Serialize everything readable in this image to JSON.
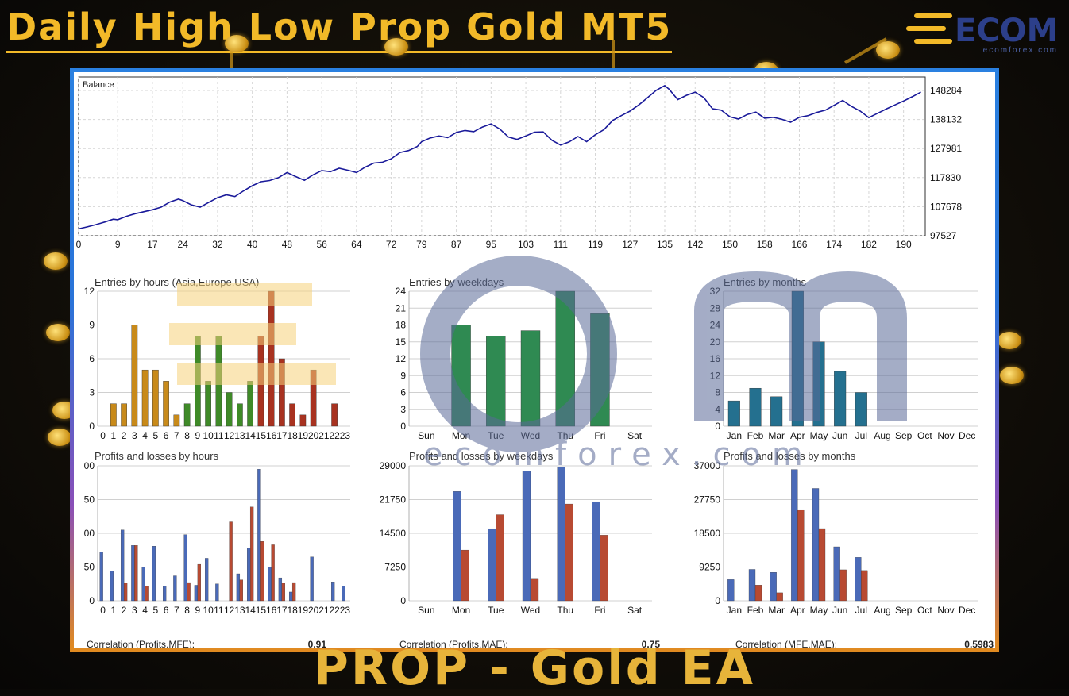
{
  "header": {
    "title": "Daily High Low Prop Gold MT5"
  },
  "brand": {
    "logo_text": "ECOM",
    "site": "ecomforex.com"
  },
  "footer": {
    "caption": "PROP - Gold EA"
  },
  "watermark": {
    "text": "ecomforex.com"
  },
  "colors": {
    "balance_line": "#1a1a9a",
    "grid": "#d0d0d0",
    "gold": "#f2b928"
  },
  "chart_data": [
    {
      "type": "line",
      "title": "Balance",
      "x_ticks": [
        "0",
        "9",
        "17",
        "24",
        "32",
        "40",
        "48",
        "56",
        "64",
        "72",
        "79",
        "87",
        "95",
        "103",
        "111",
        "119",
        "127",
        "135",
        "142",
        "150",
        "158",
        "166",
        "174",
        "182",
        "190"
      ],
      "y_ticks": [
        "148284",
        "138132",
        "127981",
        "117830",
        "107678",
        "97527"
      ],
      "xlim": [
        0,
        195
      ],
      "ylim": [
        97527,
        153000
      ],
      "points": [
        [
          0,
          99900
        ],
        [
          2,
          100600
        ],
        [
          4,
          101400
        ],
        [
          6,
          102300
        ],
        [
          8,
          103300
        ],
        [
          9,
          103100
        ],
        [
          11,
          104300
        ],
        [
          13,
          105200
        ],
        [
          15,
          105900
        ],
        [
          17,
          106600
        ],
        [
          19,
          107500
        ],
        [
          21,
          109300
        ],
        [
          23,
          110300
        ],
        [
          24,
          109800
        ],
        [
          26,
          108300
        ],
        [
          28,
          107500
        ],
        [
          30,
          109200
        ],
        [
          32,
          110800
        ],
        [
          34,
          111800
        ],
        [
          36,
          111200
        ],
        [
          38,
          113200
        ],
        [
          40,
          115000
        ],
        [
          42,
          116400
        ],
        [
          44,
          116800
        ],
        [
          46,
          117800
        ],
        [
          48,
          119600
        ],
        [
          50,
          118200
        ],
        [
          52,
          116900
        ],
        [
          54,
          118800
        ],
        [
          56,
          120300
        ],
        [
          58,
          119900
        ],
        [
          60,
          121100
        ],
        [
          62,
          120400
        ],
        [
          64,
          119600
        ],
        [
          66,
          121500
        ],
        [
          68,
          122900
        ],
        [
          70,
          123200
        ],
        [
          72,
          124400
        ],
        [
          74,
          126600
        ],
        [
          76,
          127300
        ],
        [
          78,
          128700
        ],
        [
          79,
          130400
        ],
        [
          81,
          131700
        ],
        [
          83,
          132400
        ],
        [
          85,
          131800
        ],
        [
          87,
          133600
        ],
        [
          89,
          134300
        ],
        [
          91,
          133900
        ],
        [
          93,
          135500
        ],
        [
          95,
          136600
        ],
        [
          97,
          134800
        ],
        [
          99,
          132000
        ],
        [
          101,
          131200
        ],
        [
          103,
          132400
        ],
        [
          105,
          133700
        ],
        [
          107,
          133800
        ],
        [
          109,
          130900
        ],
        [
          111,
          129200
        ],
        [
          113,
          130300
        ],
        [
          115,
          132200
        ],
        [
          117,
          130400
        ],
        [
          119,
          132800
        ],
        [
          121,
          134600
        ],
        [
          123,
          137800
        ],
        [
          125,
          139500
        ],
        [
          127,
          141100
        ],
        [
          129,
          143200
        ],
        [
          131,
          145700
        ],
        [
          133,
          148300
        ],
        [
          135,
          150000
        ],
        [
          136,
          148700
        ],
        [
          138,
          145100
        ],
        [
          140,
          146600
        ],
        [
          142,
          147700
        ],
        [
          144,
          145800
        ],
        [
          146,
          141900
        ],
        [
          148,
          141400
        ],
        [
          150,
          139100
        ],
        [
          152,
          138300
        ],
        [
          154,
          139900
        ],
        [
          156,
          140700
        ],
        [
          158,
          138600
        ],
        [
          160,
          138900
        ],
        [
          162,
          138200
        ],
        [
          164,
          137200
        ],
        [
          166,
          138900
        ],
        [
          168,
          139500
        ],
        [
          170,
          140600
        ],
        [
          172,
          141400
        ],
        [
          174,
          143100
        ],
        [
          176,
          144800
        ],
        [
          178,
          142700
        ],
        [
          180,
          141100
        ],
        [
          182,
          138800
        ],
        [
          184,
          140300
        ],
        [
          186,
          141800
        ],
        [
          188,
          143200
        ],
        [
          190,
          144600
        ],
        [
          192,
          146100
        ],
        [
          194,
          147700
        ]
      ]
    },
    {
      "type": "bar",
      "title": "Entries by hours (Asia,Europe,USA)",
      "categories": [
        "0",
        "1",
        "2",
        "3",
        "4",
        "5",
        "6",
        "7",
        "8",
        "9",
        "10",
        "11",
        "12",
        "13",
        "14",
        "15",
        "16",
        "17",
        "18",
        "19",
        "20",
        "21",
        "22",
        "23"
      ],
      "values": [
        0,
        2,
        2,
        9,
        5,
        5,
        4,
        1,
        2,
        8,
        4,
        8,
        3,
        2,
        4,
        8,
        12,
        6,
        2,
        1,
        5,
        0,
        2,
        0
      ],
      "y_ticks": [
        "12",
        "9",
        "6",
        "3",
        "0"
      ],
      "ylim": [
        0,
        12
      ],
      "colors_by_session": [
        "#c88a1a",
        "#3f8a28",
        "#a83220"
      ]
    },
    {
      "type": "bar",
      "title": "Entries by weekdays",
      "categories": [
        "Sun",
        "Mon",
        "Tue",
        "Wed",
        "Thu",
        "Fri",
        "Sat"
      ],
      "values": [
        0,
        18,
        16,
        17,
        24,
        20,
        0
      ],
      "y_ticks": [
        "24",
        "21",
        "18",
        "15",
        "12",
        "9",
        "6",
        "3",
        "0"
      ],
      "ylim": [
        0,
        24
      ],
      "color": "#2f8a52"
    },
    {
      "type": "bar",
      "title": "Entries by months",
      "categories": [
        "Jan",
        "Feb",
        "Mar",
        "Apr",
        "May",
        "Jun",
        "Jul",
        "Aug",
        "Sep",
        "Oct",
        "Nov",
        "Dec"
      ],
      "values": [
        6,
        9,
        7,
        32,
        20,
        13,
        8,
        0,
        0,
        0,
        0,
        0
      ],
      "y_ticks": [
        "32",
        "28",
        "24",
        "20",
        "16",
        "12",
        "8",
        "4",
        "0"
      ],
      "ylim": [
        0,
        32
      ],
      "color": "#24708f"
    },
    {
      "type": "bar",
      "title": "Profits and losses by hours",
      "categories": [
        "0",
        "1",
        "2",
        "3",
        "4",
        "5",
        "6",
        "7",
        "8",
        "9",
        "10",
        "11",
        "12",
        "13",
        "14",
        "15",
        "16",
        "17",
        "18",
        "19",
        "20",
        "21",
        "22",
        "23"
      ],
      "y_ticks": [
        "00",
        "50",
        "00",
        "50",
        "0"
      ],
      "ylim": [
        0,
        200
      ],
      "series": [
        {
          "name": "Profits",
          "color": "#4a6ab8",
          "values": [
            72,
            44,
            105,
            82,
            50,
            81,
            22,
            37,
            98,
            23,
            63,
            25,
            0,
            40,
            78,
            195,
            50,
            34,
            13,
            0,
            65,
            0,
            28,
            22
          ]
        },
        {
          "name": "Losses",
          "color": "#b84a32",
          "values": [
            0,
            0,
            26,
            82,
            22,
            0,
            0,
            0,
            27,
            54,
            0,
            0,
            117,
            31,
            139,
            88,
            83,
            26,
            27,
            0,
            0,
            0,
            0,
            0
          ]
        }
      ]
    },
    {
      "type": "bar",
      "title": "Profits and losses by weekdays",
      "categories": [
        "Sun",
        "Mon",
        "Tue",
        "Wed",
        "Thu",
        "Fri",
        "Sat"
      ],
      "y_ticks": [
        "29000",
        "21750",
        "14500",
        "7250",
        "0"
      ],
      "ylim": [
        0,
        29000
      ],
      "series": [
        {
          "name": "Profits",
          "color": "#4a6ab8",
          "values": [
            0,
            23500,
            15500,
            27900,
            28700,
            21300,
            0
          ]
        },
        {
          "name": "Losses",
          "color": "#b84a32",
          "values": [
            0,
            10900,
            18500,
            4800,
            20800,
            14100,
            0
          ]
        }
      ]
    },
    {
      "type": "bar",
      "title": "Profits and losses by months",
      "categories": [
        "Jan",
        "Feb",
        "Mar",
        "Apr",
        "May",
        "Jun",
        "Jul",
        "Aug",
        "Sep",
        "Oct",
        "Nov",
        "Dec"
      ],
      "y_ticks": [
        "37000",
        "27750",
        "18500",
        "9250",
        "0"
      ],
      "ylim": [
        0,
        37000
      ],
      "series": [
        {
          "name": "Profits",
          "color": "#4a6ab8",
          "values": [
            5800,
            8600,
            7800,
            36000,
            30800,
            14800,
            11900,
            0,
            0,
            0,
            0,
            0
          ]
        },
        {
          "name": "Losses",
          "color": "#b84a32",
          "values": [
            0,
            4300,
            2200,
            25000,
            19800,
            8500,
            8300,
            0,
            0,
            0,
            0,
            0
          ]
        }
      ]
    }
  ],
  "correlations": [
    {
      "label": "Correlation (Profits,MFE):",
      "value": "0.91"
    },
    {
      "label": "Correlation (Profits,MAE):",
      "value": "0.75"
    },
    {
      "label": "Correlation (MFE,MAE):",
      "value": "0.5983"
    }
  ]
}
